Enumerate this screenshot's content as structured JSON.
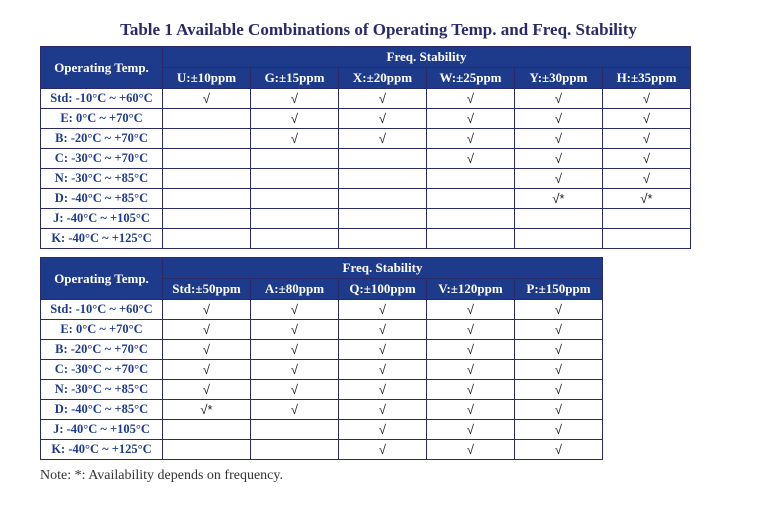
{
  "title": "Table 1 Available Combinations of Operating Temp. and Freq. Stability",
  "rowHeaderLabel": "Operating Temp.",
  "freqHeaderLabel": "Freq. Stability",
  "note": "Note: *: Availability depends on frequency.",
  "checkGlyph": "√",
  "checkStarGlyph": "√*",
  "colors": {
    "headerBg": "#1e3a8a",
    "headerText": "#ffffff",
    "border": "#2a2a6a",
    "rowLabelText": "#1e3a8a",
    "bodyBg": "#ffffff"
  },
  "tempRows": [
    "Std: -10°C ~ +60°C",
    "E: 0°C ~ +70°C",
    "B: -20°C ~ +70°C",
    "C: -30°C ~ +70°C",
    "N: -30°C ~ +85°C",
    "D: -40°C ~ +85°C",
    "J: -40°C ~ +105°C",
    "K: -40°C ~ +125°C"
  ],
  "table1": {
    "freqCols": [
      "U:±10ppm",
      "G:±15ppm",
      "X:±20ppm",
      "W:±25ppm",
      "Y:±30ppm",
      "H:±35ppm"
    ],
    "cells": [
      [
        "c",
        "c",
        "c",
        "c",
        "c",
        "c"
      ],
      [
        "",
        "c",
        "c",
        "c",
        "c",
        "c"
      ],
      [
        "",
        "c",
        "c",
        "c",
        "c",
        "c"
      ],
      [
        "",
        "",
        "",
        "c",
        "c",
        "c"
      ],
      [
        "",
        "",
        "",
        "",
        "c",
        "c"
      ],
      [
        "",
        "",
        "",
        "",
        "cs",
        "cs"
      ],
      [
        "",
        "",
        "",
        "",
        "",
        ""
      ],
      [
        "",
        "",
        "",
        "",
        "",
        ""
      ]
    ]
  },
  "table2": {
    "freqCols": [
      "Std:±50ppm",
      "A:±80ppm",
      "Q:±100ppm",
      "V:±120ppm",
      "P:±150ppm"
    ],
    "cells": [
      [
        "c",
        "c",
        "c",
        "c",
        "c"
      ],
      [
        "c",
        "c",
        "c",
        "c",
        "c"
      ],
      [
        "c",
        "c",
        "c",
        "c",
        "c"
      ],
      [
        "c",
        "c",
        "c",
        "c",
        "c"
      ],
      [
        "c",
        "c",
        "c",
        "c",
        "c"
      ],
      [
        "cs",
        "c",
        "c",
        "c",
        "c"
      ],
      [
        "",
        "",
        "c",
        "c",
        "c"
      ],
      [
        "",
        "",
        "c",
        "c",
        "c"
      ]
    ]
  }
}
